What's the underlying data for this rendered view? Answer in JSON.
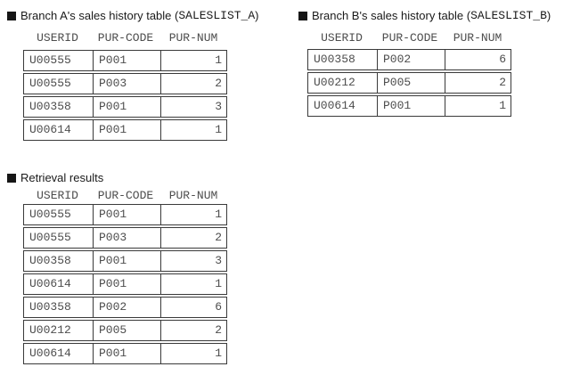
{
  "colors": {
    "border": "#3a3a3a",
    "cell_text": "#4d4d4d",
    "title_text": "#1a1a1a",
    "bullet": "#161616"
  },
  "sections": [
    {
      "name": "branch-a",
      "title_prefix": "Branch A's sales history table (",
      "title_code": "SALESLIST_A",
      "title_suffix": ")",
      "columns": [
        "USERID",
        "PUR-CODE",
        "PUR-NUM"
      ],
      "rows": [
        [
          "U00555",
          "P001",
          "1"
        ],
        [
          "U00555",
          "P003",
          "2"
        ],
        [
          "U00358",
          "P001",
          "3"
        ],
        [
          "U00614",
          "P001",
          "1"
        ]
      ]
    },
    {
      "name": "branch-b",
      "title_prefix": "Branch B's sales history table (",
      "title_code": "SALESLIST_B",
      "title_suffix": ")",
      "columns": [
        "USERID",
        "PUR-CODE",
        "PUR-NUM"
      ],
      "rows": [
        [
          "U00358",
          "P002",
          "6"
        ],
        [
          "U00212",
          "P005",
          "2"
        ],
        [
          "U00614",
          "P001",
          "1"
        ]
      ]
    },
    {
      "name": "retrieval-results",
      "title_prefix": "Retrieval results",
      "title_code": "",
      "title_suffix": "",
      "columns": [
        "USERID",
        "PUR-CODE",
        "PUR-NUM"
      ],
      "rows": [
        [
          "U00555",
          "P001",
          "1"
        ],
        [
          "U00555",
          "P003",
          "2"
        ],
        [
          "U00358",
          "P001",
          "3"
        ],
        [
          "U00614",
          "P001",
          "1"
        ],
        [
          "U00358",
          "P002",
          "6"
        ],
        [
          "U00212",
          "P005",
          "2"
        ],
        [
          "U00614",
          "P001",
          "1"
        ]
      ]
    }
  ]
}
